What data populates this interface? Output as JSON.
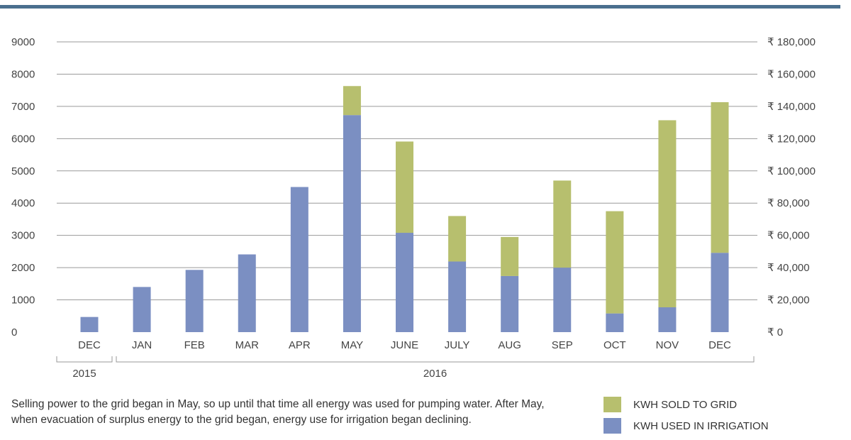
{
  "colors": {
    "top_bar": "#4a6f8e",
    "irrigation": "#7b8fc2",
    "sold": "#b7bf6e",
    "grid": "#9a9a9a"
  },
  "chart_data": {
    "type": "bar",
    "stacked": true,
    "categories": [
      "DEC",
      "JAN",
      "FEB",
      "MAR",
      "APR",
      "MAY",
      "JUNE",
      "JULY",
      "AUG",
      "SEP",
      "OCT",
      "NOV",
      "DEC"
    ],
    "year_groups": [
      {
        "label": "2015",
        "categories": [
          "DEC"
        ]
      },
      {
        "label": "2016",
        "categories": [
          "JAN",
          "FEB",
          "MAR",
          "APR",
          "MAY",
          "JUNE",
          "JULY",
          "AUG",
          "SEP",
          "OCT",
          "NOV",
          "DEC"
        ]
      }
    ],
    "series": [
      {
        "name": "KWH USED IN IRRIGATION",
        "values": [
          470,
          1400,
          1930,
          2410,
          4500,
          6730,
          3080,
          2190,
          1740,
          2000,
          580,
          770,
          2460
        ]
      },
      {
        "name": "KWH SOLD TO GRID",
        "values": [
          0,
          0,
          0,
          0,
          0,
          900,
          2830,
          1410,
          1210,
          2700,
          3170,
          5800,
          4670
        ]
      }
    ],
    "ylim": [
      0,
      9000
    ],
    "yticks": [
      "0",
      "1000",
      "2000",
      "3000",
      "4000",
      "5000",
      "6000",
      "7000",
      "8000",
      "9000"
    ],
    "y2ticks": [
      "₹ 0",
      "₹ 20,000",
      "₹ 40,000",
      "₹ 60,000",
      "₹ 80,000",
      "₹ 100,000",
      "₹ 120,000",
      "₹ 140,000",
      "₹ 160,000",
      "₹ 180,000"
    ],
    "grid": true,
    "legend_position": "bottom-right"
  },
  "legend": {
    "sold_label": "KWH SOLD TO GRID",
    "irrigation_label": "KWH USED IN IRRIGATION"
  },
  "caption": "Selling power to the grid began in May, so up until that time all energy was used for pumping water. After May, when evacuation of surplus energy to the grid began, energy use for irrigation began declining."
}
